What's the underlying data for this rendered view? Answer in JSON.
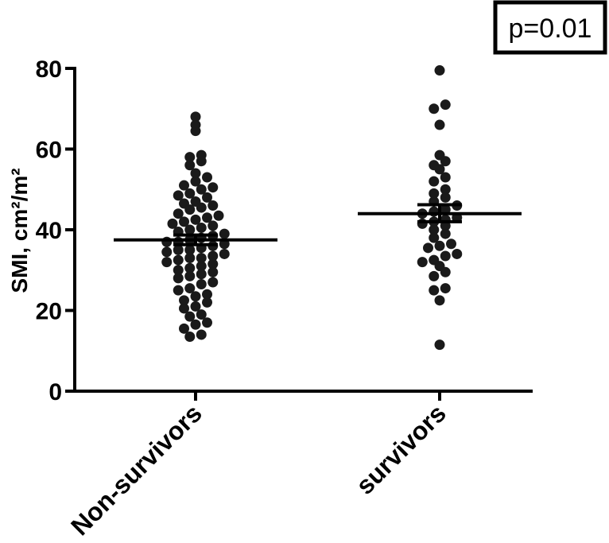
{
  "annotation": {
    "text": "p=0.01"
  },
  "colors": {
    "points": "#1a1a1a",
    "axis": "#000000"
  },
  "chart_data": {
    "type": "scatter",
    "subtype": "dot-plot with mean and SEM",
    "title": "",
    "xlabel": "",
    "ylabel": "SMI, cm²/m²",
    "ylim": [
      0,
      80
    ],
    "yticks": [
      0,
      20,
      40,
      60,
      80
    ],
    "categories": [
      "Non-survivors",
      "survivors"
    ],
    "grid": false,
    "legend": "none",
    "series": [
      {
        "category": "Non-survivors",
        "mean": 37.5,
        "sem_low": 36.3,
        "sem_high": 38.7,
        "values": [
          13.5,
          14.0,
          15.5,
          16.5,
          17.0,
          18.5,
          19.0,
          20.5,
          21.0,
          22.0,
          22.5,
          23.5,
          24.0,
          25.0,
          25.5,
          26.5,
          27.0,
          28.0,
          28.5,
          29.0,
          29.5,
          30.0,
          30.5,
          31.0,
          31.5,
          32.0,
          32.5,
          33.0,
          33.0,
          33.5,
          34.0,
          34.5,
          35.0,
          35.0,
          35.5,
          36.0,
          36.5,
          37.0,
          37.0,
          37.5,
          38.0,
          38.5,
          39.0,
          39.5,
          40.0,
          40.5,
          41.0,
          41.5,
          42.0,
          42.5,
          43.0,
          43.5,
          44.0,
          45.0,
          45.5,
          46.0,
          46.5,
          47.0,
          48.0,
          48.5,
          49.0,
          50.0,
          50.5,
          51.0,
          52.0,
          53.0,
          54.0,
          56.0,
          57.0,
          58.0,
          58.5,
          64.5,
          66.0,
          68.0
        ]
      },
      {
        "category": "survivors",
        "mean": 44.0,
        "sem_low": 42.0,
        "sem_high": 46.2,
        "values": [
          11.5,
          22.5,
          25.0,
          25.5,
          28.5,
          29.5,
          31.0,
          32.0,
          32.5,
          33.5,
          34.0,
          35.5,
          36.0,
          36.5,
          38.0,
          39.0,
          40.0,
          41.0,
          41.5,
          42.0,
          42.5,
          43.0,
          44.0,
          44.5,
          45.0,
          46.0,
          47.0,
          48.0,
          49.0,
          50.0,
          52.0,
          53.0,
          55.0,
          56.0,
          57.0,
          58.5,
          66.0,
          70.0,
          71.0,
          79.5
        ]
      }
    ]
  }
}
